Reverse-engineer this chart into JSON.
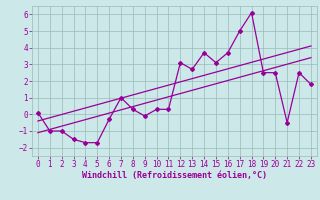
{
  "xlabel": "Windchill (Refroidissement éolien,°C)",
  "x_values": [
    0,
    1,
    2,
    3,
    4,
    5,
    6,
    7,
    8,
    9,
    10,
    11,
    12,
    13,
    14,
    15,
    16,
    17,
    18,
    19,
    20,
    21,
    22,
    23
  ],
  "main_y": [
    0.1,
    -1.0,
    -1.0,
    -1.5,
    -1.7,
    -1.7,
    -0.3,
    1.0,
    0.3,
    -0.1,
    0.3,
    0.3,
    3.1,
    2.7,
    3.7,
    3.1,
    3.7,
    5.0,
    6.1,
    2.5,
    2.5,
    -0.5,
    2.5,
    1.8
  ],
  "line1_x": [
    0,
    23
  ],
  "line1_y": [
    -0.4,
    4.1
  ],
  "line2_x": [
    0,
    23
  ],
  "line2_y": [
    -1.1,
    3.4
  ],
  "bg_color": "#cce8e8",
  "line_color": "#990099",
  "grid_color": "#99bbbb",
  "ylim": [
    -2.5,
    6.5
  ],
  "xlim": [
    -0.5,
    23.5
  ],
  "yticks": [
    -2,
    -1,
    0,
    1,
    2,
    3,
    4,
    5,
    6
  ],
  "xticks": [
    0,
    1,
    2,
    3,
    4,
    5,
    6,
    7,
    8,
    9,
    10,
    11,
    12,
    13,
    14,
    15,
    16,
    17,
    18,
    19,
    20,
    21,
    22,
    23
  ],
  "tick_fontsize": 5.5,
  "xlabel_fontsize": 6.0
}
